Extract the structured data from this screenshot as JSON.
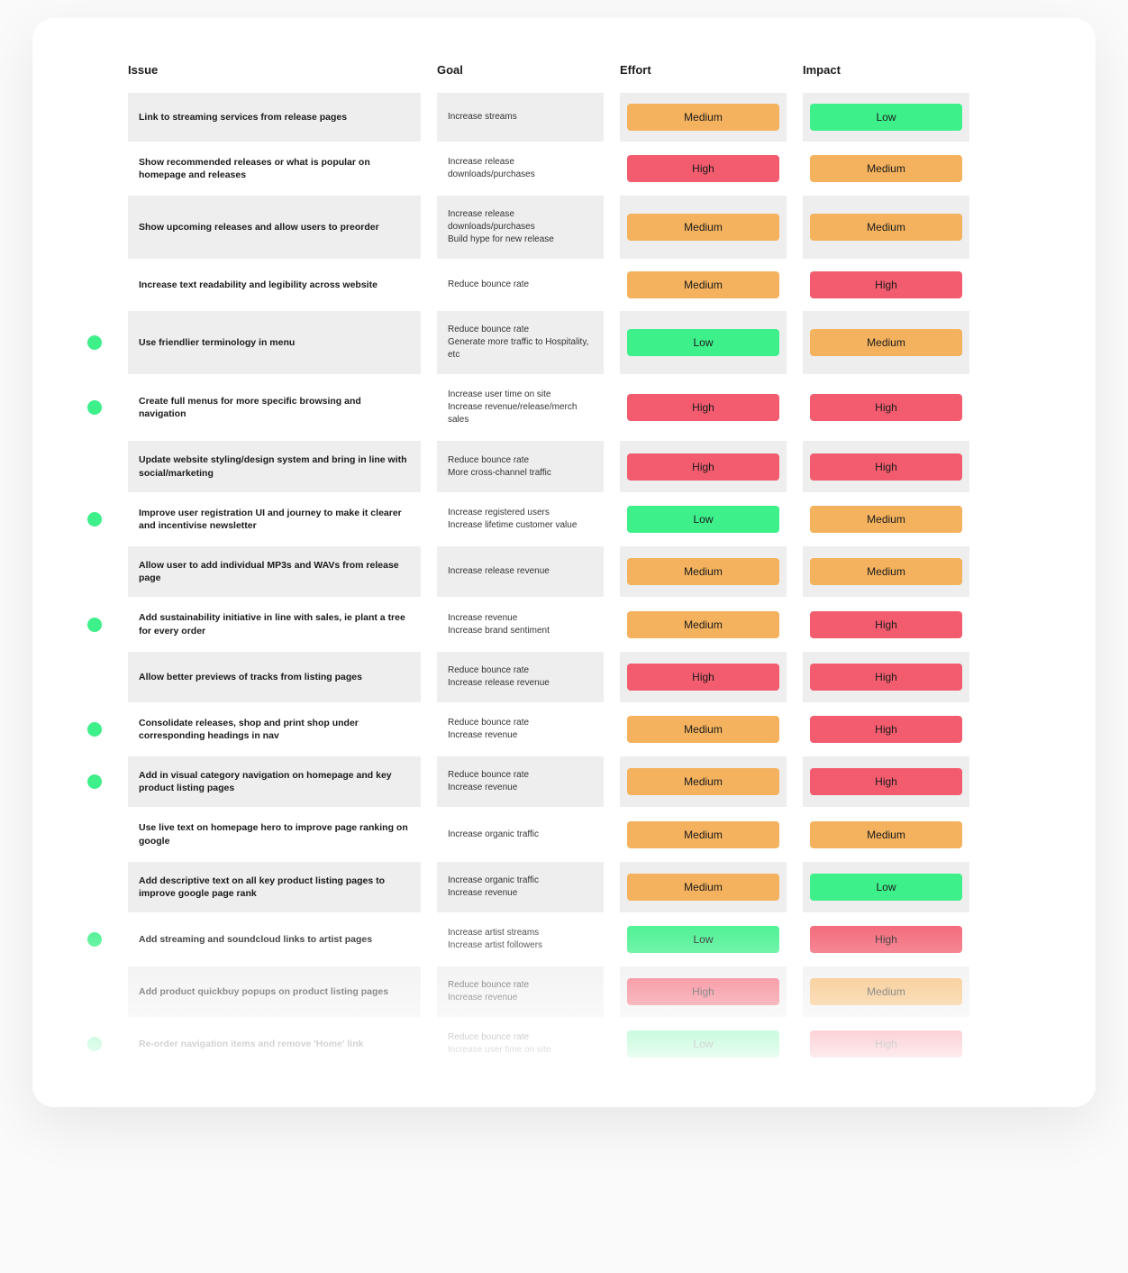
{
  "colors": {
    "low": "#3ef08a",
    "medium": "#f4b25e",
    "high": "#f25c6e",
    "marker": "#3ef08a",
    "row_alt": "#eeeeee",
    "row_base": "#ffffff",
    "card_bg": "#ffffff",
    "page_bg": "#fafafa",
    "text": "#1a1a1a"
  },
  "headers": {
    "issue": "Issue",
    "goal": "Goal",
    "effort": "Effort",
    "impact": "Impact"
  },
  "badge_labels": {
    "Low": "Low",
    "Medium": "Medium",
    "High": "High"
  },
  "rows": [
    {
      "marker": false,
      "issue": "Link to streaming services from release pages",
      "goal": "Increase streams",
      "effort": "Medium",
      "impact": "Low"
    },
    {
      "marker": false,
      "issue": "Show recommended releases or what is popular on homepage and releases",
      "goal": "Increase release downloads/purchases",
      "effort": "High",
      "impact": "Medium"
    },
    {
      "marker": false,
      "issue": "Show upcoming releases and allow users to preorder",
      "goal": "Increase release downloads/purchases\nBuild hype for new release",
      "effort": "Medium",
      "impact": "Medium"
    },
    {
      "marker": false,
      "issue": "Increase text readability and legibility across website",
      "goal": "Reduce bounce rate",
      "effort": "Medium",
      "impact": "High"
    },
    {
      "marker": true,
      "issue": "Use friendlier terminology in menu",
      "goal": "Reduce bounce rate\nGenerate more traffic to Hospitality, etc",
      "effort": "Low",
      "impact": "Medium"
    },
    {
      "marker": true,
      "issue": "Create full menus for more specific browsing and navigation",
      "goal": "Increase user time on site\nIncrease revenue/release/merch sales",
      "effort": "High",
      "impact": "High"
    },
    {
      "marker": false,
      "issue": "Update website styling/design system and bring in line with social/marketing",
      "goal": "Reduce bounce rate\nMore cross-channel traffic",
      "effort": "High",
      "impact": "High"
    },
    {
      "marker": true,
      "issue": "Improve user registration UI and journey to make it clearer and incentivise newsletter",
      "goal": "Increase registered users\nIncrease lifetime customer value",
      "effort": "Low",
      "impact": "Medium"
    },
    {
      "marker": false,
      "issue": "Allow user to add individual MP3s and WAVs from release page",
      "goal": "Increase release revenue",
      "effort": "Medium",
      "impact": "Medium"
    },
    {
      "marker": true,
      "issue": "Add sustainability initiative in line with sales, ie plant a tree for every order",
      "goal": "Increase revenue\nIncrease brand sentiment",
      "effort": "Medium",
      "impact": "High"
    },
    {
      "marker": false,
      "issue": "Allow better previews of tracks from listing pages",
      "goal": "Reduce bounce rate\nIncrease release revenue",
      "effort": "High",
      "impact": "High"
    },
    {
      "marker": true,
      "issue": "Consolidate releases, shop and print shop under corresponding headings in nav",
      "goal": "Reduce bounce rate\nIncrease revenue",
      "effort": "Medium",
      "impact": "High"
    },
    {
      "marker": true,
      "issue": "Add in visual category navigation on homepage and key product listing pages",
      "goal": "Reduce bounce rate\nIncrease revenue",
      "effort": "Medium",
      "impact": "High"
    },
    {
      "marker": false,
      "issue": "Use live text on homepage hero to improve page ranking on google",
      "goal": "Increase organic traffic",
      "effort": "Medium",
      "impact": "Medium"
    },
    {
      "marker": false,
      "issue": "Add descriptive text on all key product listing pages to improve google page rank",
      "goal": "Increase organic traffic\nIncrease revenue",
      "effort": "Medium",
      "impact": "Low"
    },
    {
      "marker": true,
      "issue": "Add streaming and soundcloud links to artist pages",
      "goal": "Increase artist streams\nIncrease artist followers",
      "effort": "Low",
      "impact": "High"
    },
    {
      "marker": false,
      "issue": "Add product quickbuy popups on product listing pages",
      "goal": "Reduce bounce rate\nIncrease revenue",
      "effort": "High",
      "impact": "Medium"
    },
    {
      "marker": true,
      "issue": "Re-order navigation items and remove 'Home' link",
      "goal": "Reduce bounce rate\nIncrease user time on site",
      "effort": "Low",
      "impact": "High"
    }
  ]
}
